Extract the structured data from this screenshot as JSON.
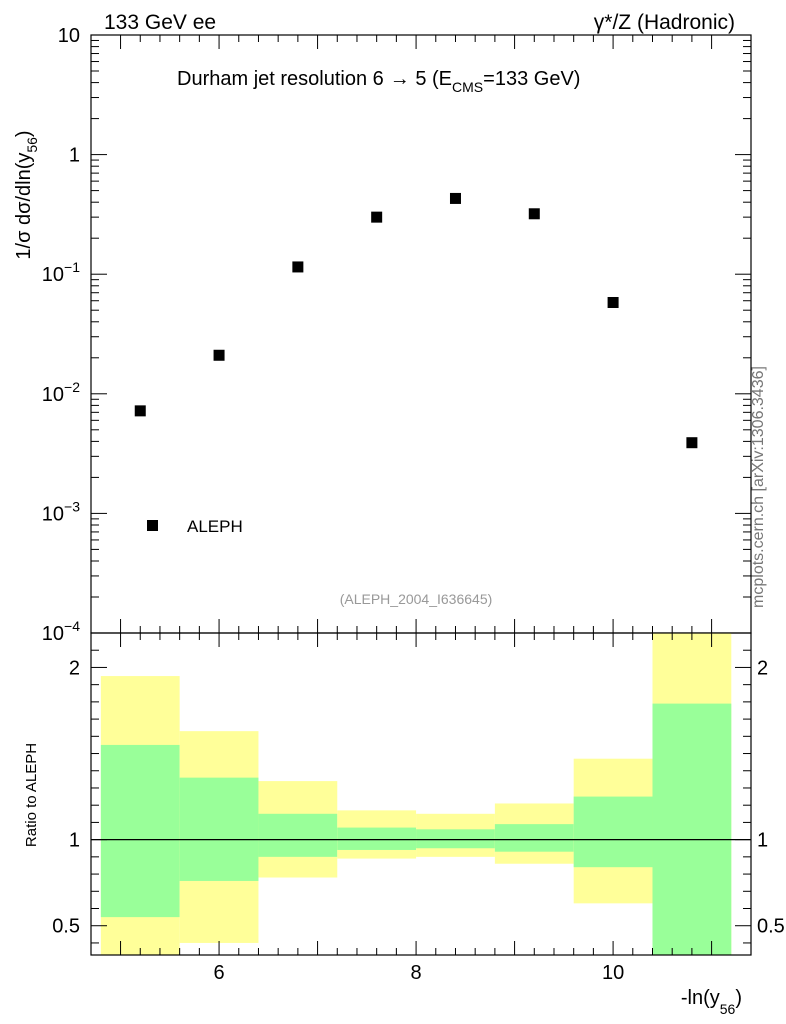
{
  "header": {
    "left": "133 GeV ee",
    "right": "γ*/Z (Hadronic)"
  },
  "side_label": "mcplots.cern.ch [arXiv:1306.3436]",
  "chart_data": {
    "type": "scatter",
    "title_main": "Durham jet resolution 6",
    "title_arrow": "→",
    "title_tail_pre": " 5 (E",
    "title_sub": "CMS",
    "title_tail_post": "=133 GeV)",
    "ylabel_main": "1/σ  dσ/dln(y",
    "ylabel_sub": "56",
    "ylabel_end": ")",
    "xlabel_main": "-ln(y",
    "xlabel_sub": "56",
    "xlabel_end": ")",
    "yscale": "log",
    "xlim": [
      4.7,
      11.4
    ],
    "ylim": [
      0.0001,
      10
    ],
    "x_ticks": [
      6,
      8,
      10
    ],
    "y_tick_labels": [
      {
        "value": 10,
        "base": "10",
        "exp": ""
      },
      {
        "value": 1,
        "base": "1",
        "exp": ""
      },
      {
        "value": 0.1,
        "base": "10",
        "exp": "−1"
      },
      {
        "value": 0.01,
        "base": "10",
        "exp": "−2"
      },
      {
        "value": 0.001,
        "base": "10",
        "exp": "−3"
      },
      {
        "value": 0.0001,
        "base": "10",
        "exp": "−4"
      }
    ],
    "legend": {
      "label": "ALEPH",
      "position": "bottom-left"
    },
    "analysis_label": "(ALEPH_2004_I636645)",
    "series": [
      {
        "name": "ALEPH",
        "marker": "square",
        "color": "#000000",
        "points": [
          {
            "x": 5.2,
            "y": 0.0072
          },
          {
            "x": 6.0,
            "y": 0.021
          },
          {
            "x": 6.8,
            "y": 0.115
          },
          {
            "x": 7.6,
            "y": 0.3
          },
          {
            "x": 8.4,
            "y": 0.43
          },
          {
            "x": 9.2,
            "y": 0.32
          },
          {
            "x": 10.0,
            "y": 0.058
          },
          {
            "x": 10.8,
            "y": 0.0039
          }
        ]
      }
    ],
    "ratio": {
      "ylabel": "Ratio to ALEPH",
      "ylim": [
        0.33,
        2.2
      ],
      "y_ticks": [
        0.5,
        1,
        2
      ],
      "inner_color": "#99ff99",
      "outer_color": "#ffff99",
      "bins": [
        {
          "x0": 4.8,
          "x1": 5.6,
          "inner": [
            0.55,
            1.55
          ],
          "outer": [
            0.33,
            1.95
          ]
        },
        {
          "x0": 5.6,
          "x1": 6.4,
          "inner": [
            0.76,
            1.36
          ],
          "outer": [
            0.4,
            1.63
          ]
        },
        {
          "x0": 6.4,
          "x1": 7.2,
          "inner": [
            0.9,
            1.15
          ],
          "outer": [
            0.78,
            1.34
          ]
        },
        {
          "x0": 7.2,
          "x1": 8.0,
          "inner": [
            0.94,
            1.07
          ],
          "outer": [
            0.89,
            1.17
          ]
        },
        {
          "x0": 8.0,
          "x1": 8.8,
          "inner": [
            0.95,
            1.06
          ],
          "outer": [
            0.9,
            1.15
          ]
        },
        {
          "x0": 8.8,
          "x1": 9.6,
          "inner": [
            0.93,
            1.09
          ],
          "outer": [
            0.86,
            1.21
          ]
        },
        {
          "x0": 9.6,
          "x1": 10.4,
          "inner": [
            0.84,
            1.25
          ],
          "outer": [
            0.63,
            1.47
          ]
        },
        {
          "x0": 10.4,
          "x1": 11.2,
          "inner": [
            0.33,
            1.79
          ],
          "outer": [
            0.33,
            2.2
          ]
        }
      ]
    }
  }
}
